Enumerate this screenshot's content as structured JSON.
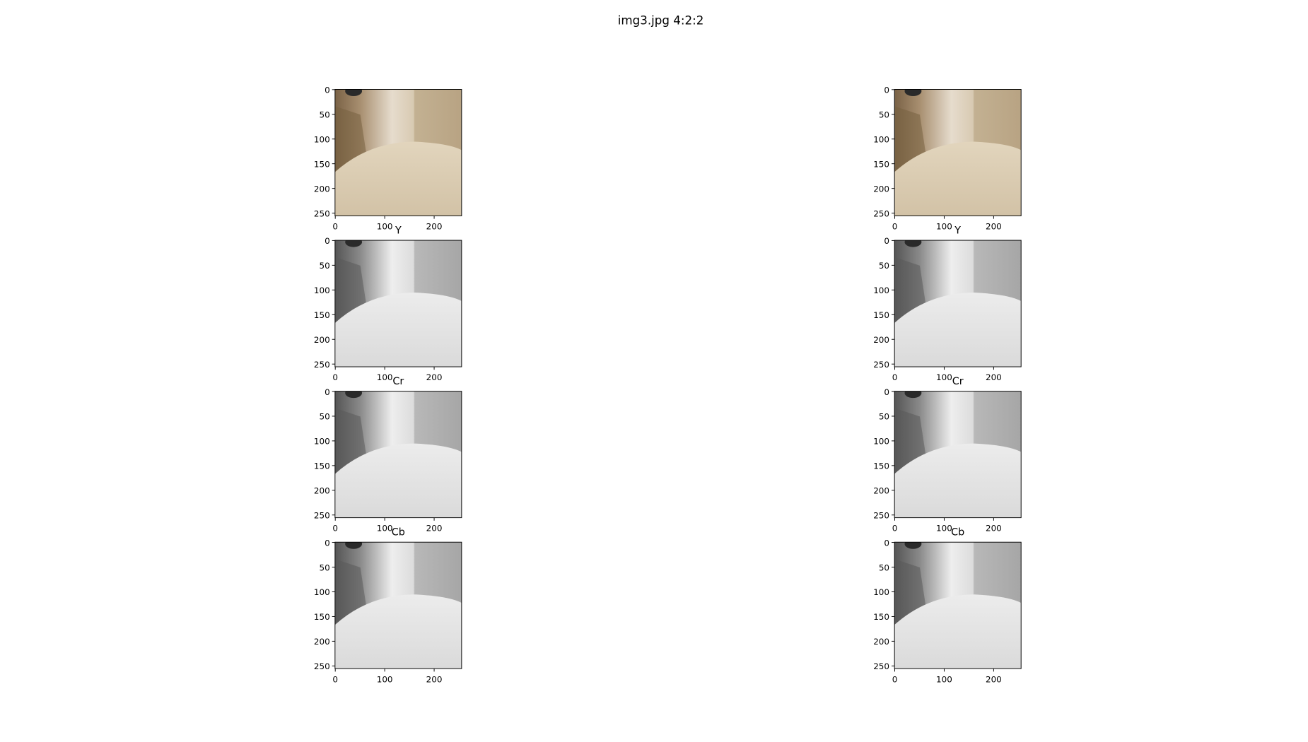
{
  "suptitle": "img3.jpg 4:2:2",
  "chart_data": [
    {
      "type": "image",
      "xlim": [
        -0.5,
        255.5
      ],
      "ylim": [
        255.5,
        -0.5
      ],
      "xticks": [
        0,
        100,
        200
      ],
      "yticks": [
        0,
        50,
        100,
        150,
        200,
        250
      ]
    },
    {
      "type": "image",
      "xlim": [
        -0.5,
        255.5
      ],
      "ylim": [
        255.5,
        -0.5
      ],
      "xticks": [
        0,
        100,
        200
      ],
      "yticks": [
        0,
        50,
        100,
        150,
        200,
        250
      ]
    },
    {
      "type": "image",
      "title": "Y",
      "cmap": "gray",
      "xlim": [
        -0.5,
        255.5
      ],
      "ylim": [
        255.5,
        -0.5
      ],
      "xticks": [
        0,
        100,
        200
      ],
      "yticks": [
        0,
        50,
        100,
        150,
        200,
        250
      ]
    },
    {
      "type": "image",
      "title": "Y",
      "cmap": "gray",
      "xlim": [
        -0.5,
        255.5
      ],
      "ylim": [
        255.5,
        -0.5
      ],
      "xticks": [
        0,
        100,
        200
      ],
      "yticks": [
        0,
        50,
        100,
        150,
        200,
        250
      ]
    },
    {
      "type": "image",
      "title": "Cr",
      "cmap": "gray",
      "xlim": [
        -0.5,
        255.5
      ],
      "ylim": [
        255.5,
        -0.5
      ],
      "xticks": [
        0,
        100,
        200
      ],
      "yticks": [
        0,
        50,
        100,
        150,
        200,
        250
      ]
    },
    {
      "type": "image",
      "title": "Cr",
      "cmap": "gray",
      "xlim": [
        -0.5,
        255.5
      ],
      "ylim": [
        255.5,
        -0.5
      ],
      "xticks": [
        0,
        100,
        200
      ],
      "yticks": [
        0,
        50,
        100,
        150,
        200,
        250
      ]
    },
    {
      "type": "image",
      "title": "Cb",
      "cmap": "gray",
      "xlim": [
        -0.5,
        255.5
      ],
      "ylim": [
        255.5,
        -0.5
      ],
      "xticks": [
        0,
        100,
        200
      ],
      "yticks": [
        0,
        50,
        100,
        150,
        200,
        250
      ]
    },
    {
      "type": "image",
      "title": "Cb",
      "cmap": "gray",
      "xlim": [
        -0.5,
        255.5
      ],
      "ylim": [
        255.5,
        -0.5
      ],
      "xticks": [
        0,
        100,
        200
      ],
      "yticks": [
        0,
        50,
        100,
        150,
        200,
        250
      ]
    }
  ]
}
